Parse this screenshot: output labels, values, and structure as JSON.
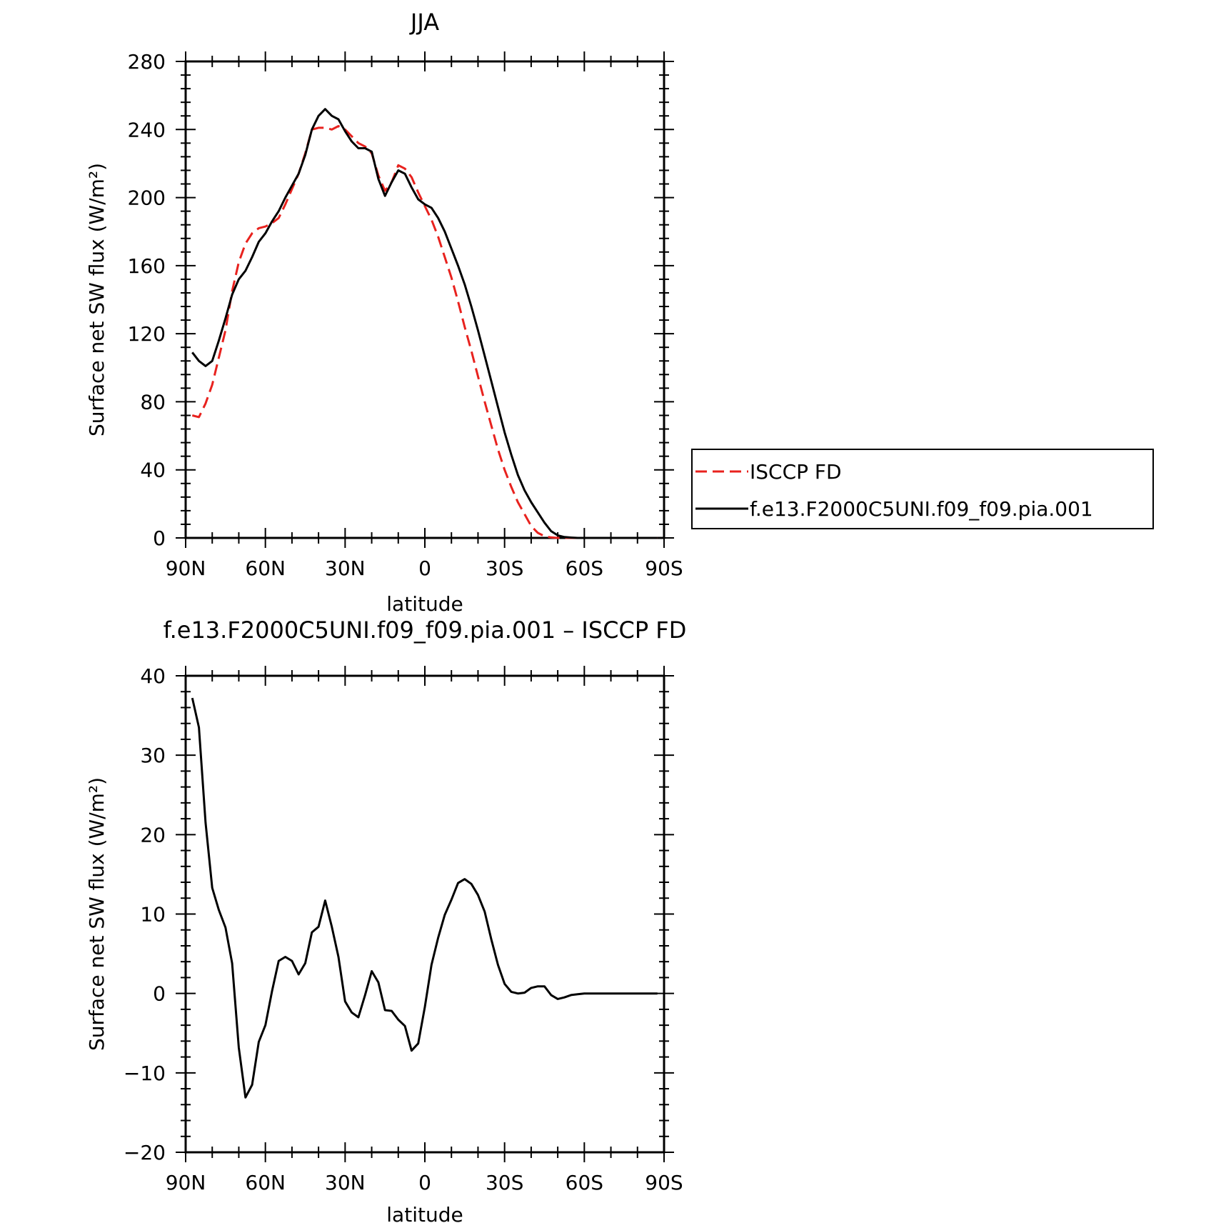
{
  "chart_data": [
    {
      "type": "line",
      "title": "JJA",
      "xlabel": "latitude",
      "ylabel": "Surface net SW flux (W/m²)",
      "xlim": [
        90,
        -90
      ],
      "ylim": [
        0,
        280
      ],
      "x_ticks": [
        90,
        60,
        30,
        0,
        -30,
        -60,
        -90
      ],
      "x_tick_labels": [
        "90N",
        "60N",
        "30N",
        "0",
        "30S",
        "60S",
        "90S"
      ],
      "y_ticks": [
        0,
        40,
        80,
        120,
        160,
        200,
        240,
        280
      ],
      "y_tick_labels": [
        "0",
        "40",
        "80",
        "120",
        "160",
        "200",
        "240",
        "280"
      ],
      "grid": false,
      "legend_position": "outside-right",
      "series": [
        {
          "name": "ISCCP FD",
          "color": "#e8221e",
          "style": "dashed",
          "x": [
            87.5,
            85,
            82.5,
            80,
            77.5,
            75,
            72.5,
            70,
            67.5,
            65,
            62.5,
            60,
            57.5,
            55,
            52.5,
            50,
            47.5,
            45,
            42.5,
            40,
            37.5,
            35,
            32.5,
            30,
            27.5,
            25,
            22.5,
            20,
            17.5,
            15,
            12.5,
            10,
            7.5,
            5,
            2.5,
            0,
            -2.5,
            -5,
            -7.5,
            -10,
            -12.5,
            -15,
            -17.5,
            -20,
            -22.5,
            -25,
            -27.5,
            -30,
            -32.5,
            -35,
            -37.5,
            -40,
            -42.5,
            -45,
            -47.5,
            -50,
            -52.5,
            -55,
            -57.5,
            -60,
            -62.5,
            -65,
            -67.5,
            -70,
            -72.5,
            -75,
            -77.5,
            -80,
            -82.5,
            -85,
            -87.5
          ],
          "values": [
            72,
            71,
            79,
            90,
            106,
            122,
            145,
            162,
            173,
            179,
            182,
            183,
            185,
            188,
            196,
            205,
            214,
            226,
            240,
            241,
            241,
            240,
            242,
            240,
            236,
            232,
            230,
            226,
            213,
            204,
            209,
            219,
            217,
            212,
            203,
            195,
            187,
            177,
            165,
            153,
            139,
            124,
            110,
            95,
            80,
            66,
            52,
            40,
            30,
            21,
            14,
            7,
            3,
            1,
            0.3,
            0,
            0,
            0,
            0,
            0,
            0,
            0,
            0,
            0,
            0,
            0,
            0,
            0,
            0,
            0,
            0
          ]
        },
        {
          "name": "f.e13.F2000C5UNI.f09_f09.pia.001",
          "color": "#000000",
          "style": "solid",
          "x": [
            87.5,
            85,
            82.5,
            80,
            77.5,
            75,
            72.5,
            70,
            67.5,
            65,
            62.5,
            60,
            57.5,
            55,
            52.5,
            50,
            47.5,
            45,
            42.5,
            40,
            37.5,
            35,
            32.5,
            30,
            27.5,
            25,
            22.5,
            20,
            17.5,
            15,
            12.5,
            10,
            7.5,
            5,
            2.5,
            0,
            -2.5,
            -5,
            -7.5,
            -10,
            -12.5,
            -15,
            -17.5,
            -20,
            -22.5,
            -25,
            -27.5,
            -30,
            -32.5,
            -35,
            -37.5,
            -40,
            -42.5,
            -45,
            -47.5,
            -50,
            -52.5,
            -55,
            -57.5,
            -60,
            -62.5,
            -65,
            -67.5,
            -70,
            -72.5,
            -75,
            -77.5,
            -80,
            -82.5,
            -85,
            -87.5
          ],
          "values": [
            109,
            104,
            101,
            104,
            116,
            129,
            143,
            152,
            157,
            165,
            174,
            179,
            186,
            192,
            200,
            207,
            214,
            225,
            240,
            248,
            252,
            248,
            246,
            239,
            233,
            229,
            229,
            227,
            211,
            201,
            209,
            216,
            214,
            206,
            199,
            196,
            194,
            188,
            180,
            170,
            160,
            149,
            136,
            122,
            107,
            92,
            77,
            62,
            49,
            37,
            28,
            21,
            15,
            9,
            4,
            1.5,
            0.5,
            0.2,
            0,
            0,
            0,
            0,
            0,
            0,
            0,
            0,
            0,
            0,
            0,
            0,
            0
          ]
        }
      ]
    },
    {
      "type": "line",
      "title": "f.e13.F2000C5UNI.f09_f09.pia.001 – ISCCP FD",
      "xlabel": "latitude",
      "ylabel": "Surface net SW flux (W/m²)",
      "xlim": [
        90,
        -90
      ],
      "ylim": [
        -20,
        40
      ],
      "x_ticks": [
        90,
        60,
        30,
        0,
        -30,
        -60,
        -90
      ],
      "x_tick_labels": [
        "90N",
        "60N",
        "30N",
        "0",
        "30S",
        "60S",
        "90S"
      ],
      "y_ticks": [
        -20,
        -10,
        0,
        10,
        20,
        30,
        40
      ],
      "y_tick_labels": [
        "−20",
        "−10",
        "0",
        "10",
        "20",
        "30",
        "40"
      ],
      "grid": false,
      "series": [
        {
          "color": "#000000",
          "style": "solid",
          "x": [
            87.5,
            85,
            82.5,
            80,
            77.5,
            75,
            72.5,
            70,
            67.5,
            65,
            62.5,
            60,
            57.5,
            55,
            52.5,
            50,
            47.5,
            45,
            42.5,
            40,
            37.5,
            35,
            32.5,
            30,
            27.5,
            25,
            22.5,
            20,
            17.5,
            15,
            12.5,
            10,
            7.5,
            5,
            2.5,
            0,
            -2.5,
            -5,
            -7.5,
            -10,
            -12.5,
            -15,
            -17.5,
            -20,
            -22.5,
            -25,
            -27.5,
            -30,
            -32.5,
            -35,
            -37.5,
            -40,
            -42.5,
            -45,
            -47.5,
            -50,
            -52.5,
            -55,
            -57.5,
            -60,
            -62.5,
            -65,
            -67.5,
            -70,
            -72.5,
            -75,
            -77.5,
            -80,
            -82.5,
            -85,
            -87.5
          ],
          "values": [
            37.2,
            33.5,
            21.5,
            13.3,
            10.5,
            8.3,
            3.8,
            -6.8,
            -13.1,
            -11.5,
            -6.1,
            -4.0,
            0.3,
            4.1,
            4.6,
            4.1,
            2.4,
            3.8,
            7.7,
            8.4,
            11.7,
            8.4,
            4.6,
            -1.0,
            -2.4,
            -3.0,
            -0.2,
            2.8,
            1.4,
            -2.1,
            -2.2,
            -3.3,
            -4.1,
            -7.2,
            -6.3,
            -1.7,
            3.6,
            7.0,
            9.9,
            11.8,
            13.9,
            14.4,
            13.8,
            12.4,
            10.3,
            6.8,
            3.6,
            1.2,
            0.2,
            0,
            0.1,
            0.7,
            0.9,
            0.9,
            -0.2,
            -0.7,
            -0.5,
            -0.2,
            -0.1,
            0,
            0,
            0,
            0,
            0,
            0,
            0,
            0,
            0,
            0,
            0,
            0
          ]
        }
      ]
    }
  ]
}
